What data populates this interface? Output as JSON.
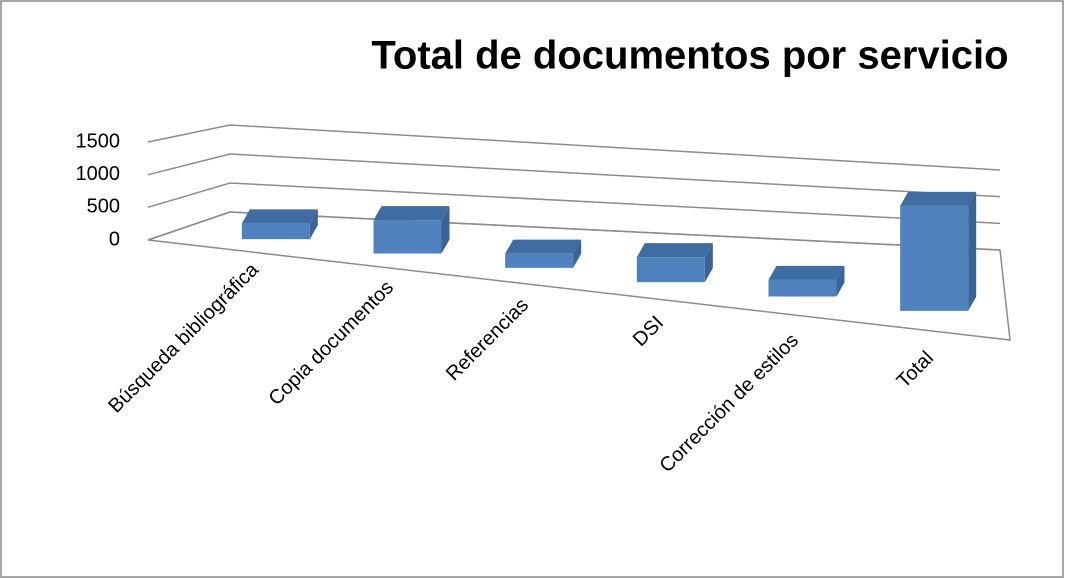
{
  "chart_data": {
    "type": "bar3d",
    "title": "Total de documentos por servicio",
    "categories": [
      "Búsqueda bibliográfica",
      "Copia documentos",
      "Referencias",
      "DSI",
      "Corrección de estilos",
      "Total"
    ],
    "values": [
      190,
      400,
      170,
      300,
      200,
      1260
    ],
    "color": "#4f81bd",
    "ylim": [
      0,
      1500
    ],
    "yticks": [
      0,
      500,
      1000,
      1500
    ],
    "grid": true
  }
}
